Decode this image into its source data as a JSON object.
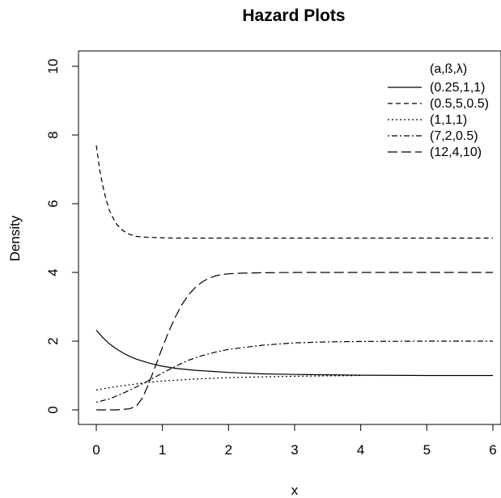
{
  "chart_data": {
    "type": "line",
    "title": "Hazard Plots",
    "xlabel": "x",
    "ylabel": "Density",
    "xlim": [
      0,
      6
    ],
    "ylim": [
      0,
      10
    ],
    "xticks": [
      "0",
      "1",
      "2",
      "3",
      "4",
      "5",
      "6"
    ],
    "yticks": [
      "0",
      "2",
      "4",
      "6",
      "8",
      "10"
    ],
    "grid": false,
    "legend": {
      "title": "(a,ß,λ)",
      "position": "top-right",
      "entries": [
        "(0.25,1,1)",
        "(0.5,5,0.5)",
        "(1,1,1)",
        "(7,2,0.5)",
        "(12,4,10)"
      ]
    },
    "series": [
      {
        "name": "(0.25,1,1)",
        "linestyle": "solid",
        "x": [
          0,
          0.1,
          0.2,
          0.3,
          0.4,
          0.5,
          0.6,
          0.8,
          1.0,
          1.2,
          1.5,
          2.0,
          2.5,
          3.0,
          3.5,
          4.0,
          5.0,
          6.0
        ],
        "y": [
          2.32,
          2.1,
          1.92,
          1.78,
          1.66,
          1.56,
          1.48,
          1.36,
          1.27,
          1.21,
          1.15,
          1.09,
          1.05,
          1.03,
          1.02,
          1.01,
          1.0,
          1.0
        ]
      },
      {
        "name": "(0.5,5,0.5)",
        "linestyle": "dashed",
        "x": [
          0,
          0.05,
          0.1,
          0.15,
          0.2,
          0.25,
          0.3,
          0.4,
          0.5,
          0.6,
          0.7,
          0.8,
          1.0,
          1.2,
          1.5,
          2.0,
          3.0,
          4.0,
          5.0,
          6.0
        ],
        "y": [
          7.7,
          7.0,
          6.5,
          6.1,
          5.8,
          5.6,
          5.42,
          5.22,
          5.11,
          5.05,
          5.03,
          5.02,
          5.01,
          5.0,
          5.0,
          5.0,
          5.0,
          5.0,
          5.0,
          5.0
        ]
      },
      {
        "name": "(1,1,1)",
        "linestyle": "dotted",
        "x": [
          0,
          0.25,
          0.5,
          0.75,
          1.0,
          1.5,
          2.0,
          2.5,
          3.0,
          3.5,
          4.0
        ],
        "y": [
          0.58,
          0.66,
          0.73,
          0.79,
          0.84,
          0.9,
          0.94,
          0.96,
          0.98,
          0.99,
          1.0
        ]
      },
      {
        "name": "(7,2,0.5)",
        "linestyle": "dashdot",
        "x": [
          0,
          0.2,
          0.4,
          0.6,
          0.8,
          1.0,
          1.2,
          1.4,
          1.6,
          1.8,
          2.0,
          2.5,
          3.0,
          3.5,
          4.0,
          5.0,
          6.0
        ],
        "y": [
          0.22,
          0.32,
          0.48,
          0.66,
          0.86,
          1.07,
          1.27,
          1.45,
          1.58,
          1.68,
          1.76,
          1.88,
          1.95,
          1.98,
          1.99,
          2.0,
          2.0
        ]
      },
      {
        "name": "(12,4,10)",
        "linestyle": "longdash",
        "x": [
          0,
          0.3,
          0.5,
          0.6,
          0.7,
          0.8,
          0.9,
          1.0,
          1.1,
          1.2,
          1.3,
          1.4,
          1.5,
          1.6,
          1.7,
          1.8,
          1.9,
          2.0,
          2.2,
          2.5,
          3.0,
          4.0,
          5.0,
          6.0
        ],
        "y": [
          0.0,
          0.0,
          0.03,
          0.1,
          0.35,
          0.8,
          1.3,
          1.82,
          2.3,
          2.72,
          3.08,
          3.36,
          3.57,
          3.72,
          3.83,
          3.9,
          3.94,
          3.96,
          3.98,
          3.99,
          4.0,
          4.0,
          4.0,
          4.0
        ]
      }
    ]
  }
}
